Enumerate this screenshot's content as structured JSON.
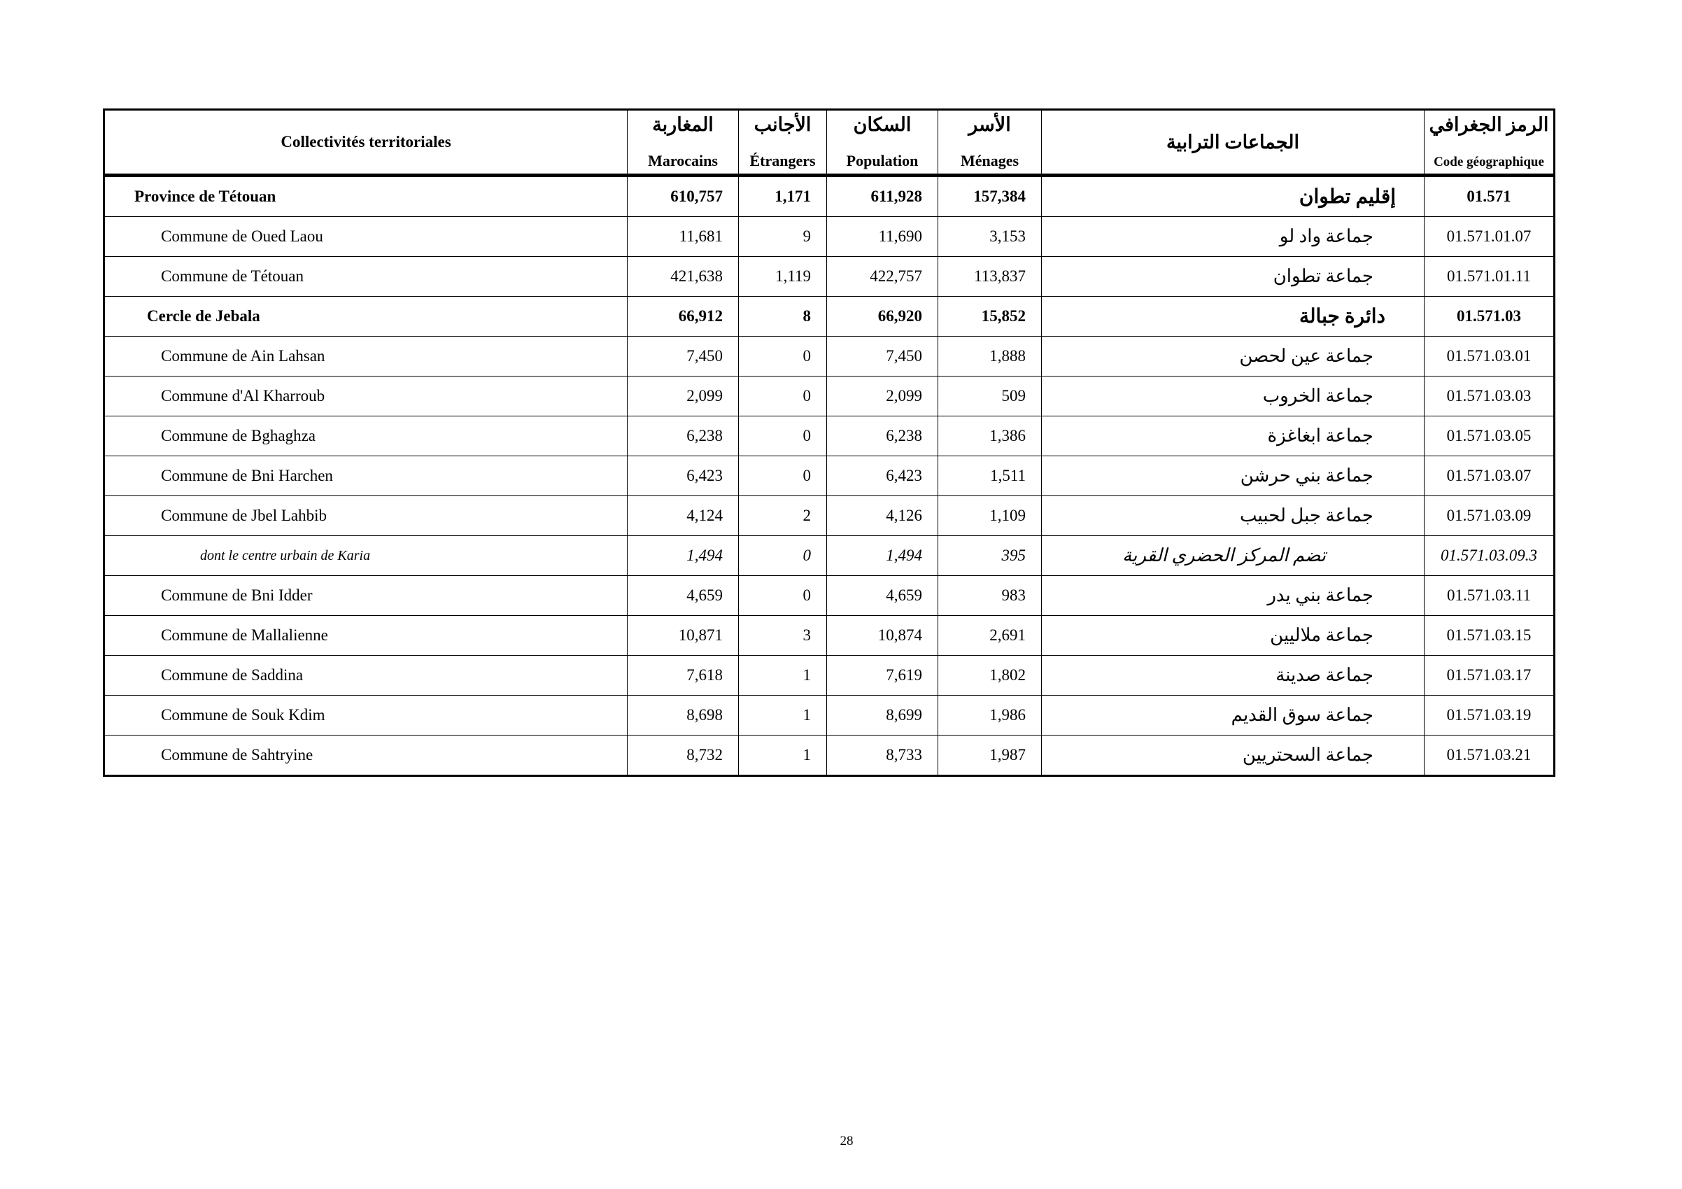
{
  "table": {
    "headers": {
      "name_fr": "Collectivités territoriales",
      "marocains": {
        "ar": "المغاربة",
        "fr": "Marocains"
      },
      "etrangers": {
        "ar": "الأجانب",
        "fr": "Étrangers"
      },
      "population": {
        "ar": "السكان",
        "fr": "Population"
      },
      "menages": {
        "ar": "الأسر",
        "fr": "Ménages"
      },
      "name_ar": "الجماعات الترابية",
      "code": {
        "ar": "الرمز الجغرافي",
        "fr": "Code géographique"
      }
    },
    "rows": [
      {
        "level": "province",
        "name": "Province de Tétouan",
        "marocains": "610,757",
        "etrangers": "1,171",
        "population": "611,928",
        "menages": "157,384",
        "name_ar": "إقليم تطوان",
        "code": "01.571"
      },
      {
        "level": "commune",
        "name": "Commune de Oued Laou",
        "marocains": "11,681",
        "etrangers": "9",
        "population": "11,690",
        "menages": "3,153",
        "name_ar": "جماعة واد لو",
        "code": "01.571.01.07"
      },
      {
        "level": "commune",
        "name": "Commune de Tétouan",
        "marocains": "421,638",
        "etrangers": "1,119",
        "population": "422,757",
        "menages": "113,837",
        "name_ar": "جماعة تطوان",
        "code": "01.571.01.11"
      },
      {
        "level": "cercle",
        "name": "Cercle de Jebala",
        "marocains": "66,912",
        "etrangers": "8",
        "population": "66,920",
        "menages": "15,852",
        "name_ar": "دائرة جبالة",
        "code": "01.571.03"
      },
      {
        "level": "commune",
        "name": "Commune de Ain Lahsan",
        "marocains": "7,450",
        "etrangers": "0",
        "population": "7,450",
        "menages": "1,888",
        "name_ar": "جماعة عين لحصن",
        "code": "01.571.03.01"
      },
      {
        "level": "commune",
        "name": "Commune d'Al Kharroub",
        "marocains": "2,099",
        "etrangers": "0",
        "population": "2,099",
        "menages": "509",
        "name_ar": "جماعة الخروب",
        "code": "01.571.03.03"
      },
      {
        "level": "commune",
        "name": "Commune de Bghaghza",
        "marocains": "6,238",
        "etrangers": "0",
        "population": "6,238",
        "menages": "1,386",
        "name_ar": "جماعة ابغاغزة",
        "code": "01.571.03.05"
      },
      {
        "level": "commune",
        "name": "Commune de Bni Harchen",
        "marocains": "6,423",
        "etrangers": "0",
        "population": "6,423",
        "menages": "1,511",
        "name_ar": "جماعة بني حرشن",
        "code": "01.571.03.07"
      },
      {
        "level": "commune",
        "name": "Commune de Jbel Lahbib",
        "marocains": "4,124",
        "etrangers": "2",
        "population": "4,126",
        "menages": "1,109",
        "name_ar": "جماعة جبل لحبيب",
        "code": "01.571.03.09"
      },
      {
        "level": "dont",
        "name": "dont le centre urbain de Karia",
        "marocains": "1,494",
        "etrangers": "0",
        "population": "1,494",
        "menages": "395",
        "name_ar": "تضم المركز الحضري القرية",
        "code": "01.571.03.09.3"
      },
      {
        "level": "commune",
        "name": "Commune de Bni Idder",
        "marocains": "4,659",
        "etrangers": "0",
        "population": "4,659",
        "menages": "983",
        "name_ar": "جماعة بني يدر",
        "code": "01.571.03.11"
      },
      {
        "level": "commune",
        "name": "Commune de Mallalienne",
        "marocains": "10,871",
        "etrangers": "3",
        "population": "10,874",
        "menages": "2,691",
        "name_ar": "جماعة ملاليين",
        "code": "01.571.03.15"
      },
      {
        "level": "commune",
        "name": "Commune de Saddina",
        "marocains": "7,618",
        "etrangers": "1",
        "population": "7,619",
        "menages": "1,802",
        "name_ar": "جماعة صدينة",
        "code": "01.571.03.17"
      },
      {
        "level": "commune",
        "name": "Commune de Souk Kdim",
        "marocains": "8,698",
        "etrangers": "1",
        "population": "8,699",
        "menages": "1,986",
        "name_ar": "جماعة سوق القديم",
        "code": "01.571.03.19"
      },
      {
        "level": "commune",
        "name": "Commune de Sahtryine",
        "marocains": "8,732",
        "etrangers": "1",
        "population": "8,733",
        "menages": "1,987",
        "name_ar": "جماعة السحتريين",
        "code": "01.571.03.21"
      }
    ]
  },
  "page_number": "28"
}
